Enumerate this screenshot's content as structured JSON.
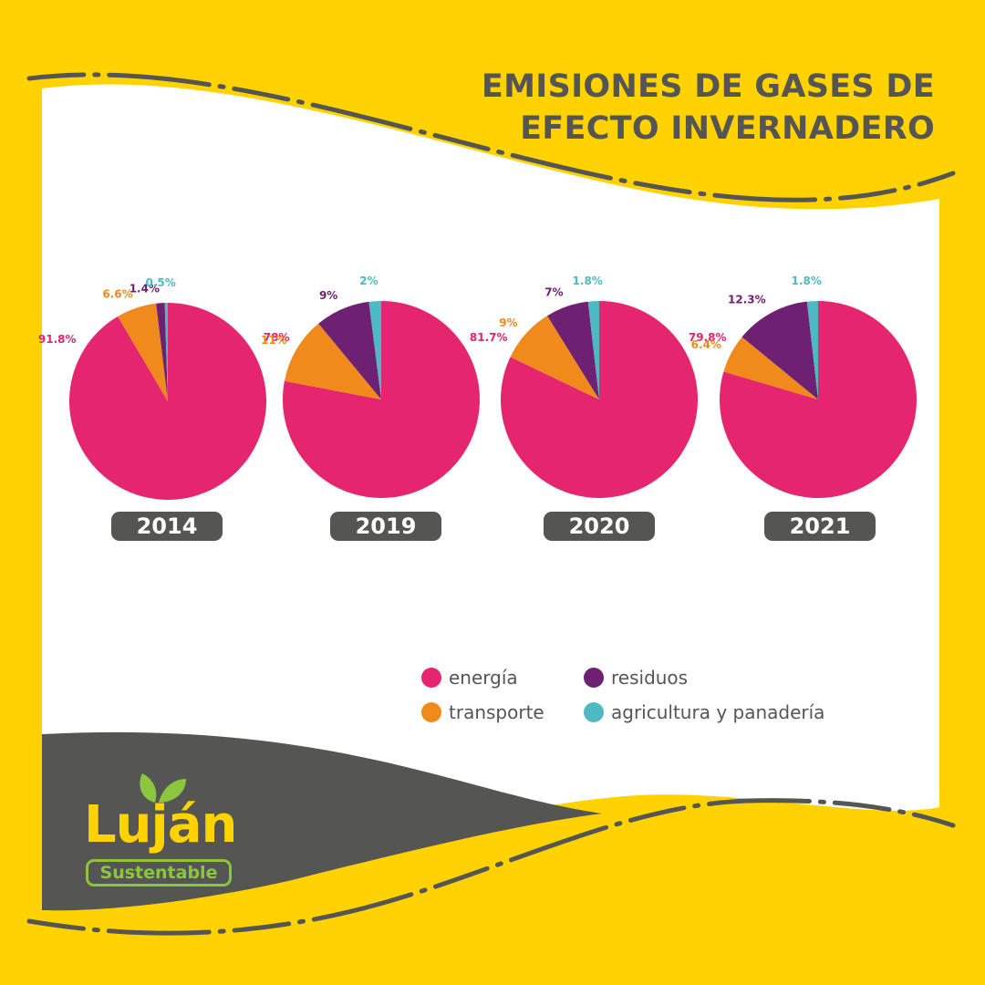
{
  "title_lines": [
    "EMISIONES DE GASES DE",
    "EFECTO INVERNADERO"
  ],
  "colors": {
    "background": "#ffd200",
    "panel": "#ffffff",
    "dark": "#555553",
    "energia": "#e6256f",
    "transporte": "#f08a1c",
    "residuos": "#6e2173",
    "agricultura": "#4dbac3",
    "logo_green": "#8cc63f"
  },
  "chart_data": [
    {
      "type": "pie",
      "title": "2014",
      "slices": [
        {
          "label": "energía",
          "value": 91.8,
          "display": "91.8%",
          "color": "#e6256f"
        },
        {
          "label": "transporte",
          "value": 6.6,
          "display": "6.6%",
          "color": "#f08a1c"
        },
        {
          "label": "residuos",
          "value": 1.4,
          "display": "1.4%",
          "color": "#6e2173"
        },
        {
          "label": "agricultura y panadería",
          "value": 0.5,
          "display": "0.5%",
          "color": "#4dbac3"
        }
      ]
    },
    {
      "type": "pie",
      "title": "2019",
      "slices": [
        {
          "label": "energía",
          "value": 78,
          "display": "78%",
          "color": "#e6256f"
        },
        {
          "label": "transporte",
          "value": 11,
          "display": "11%",
          "color": "#f08a1c"
        },
        {
          "label": "residuos",
          "value": 9,
          "display": "9%",
          "color": "#6e2173"
        },
        {
          "label": "agricultura y panadería",
          "value": 2,
          "display": "2%",
          "color": "#4dbac3"
        }
      ]
    },
    {
      "type": "pie",
      "title": "2020",
      "slices": [
        {
          "label": "energía",
          "value": 81.7,
          "display": "81.7%",
          "color": "#e6256f"
        },
        {
          "label": "transporte",
          "value": 9,
          "display": "9%",
          "color": "#f08a1c"
        },
        {
          "label": "residuos",
          "value": 7,
          "display": "7%",
          "color": "#6e2173"
        },
        {
          "label": "agricultura y panadería",
          "value": 1.8,
          "display": "1.8%",
          "color": "#4dbac3"
        }
      ]
    },
    {
      "type": "pie",
      "title": "2021",
      "slices": [
        {
          "label": "energía",
          "value": 79.8,
          "display": "79.8%",
          "color": "#e6256f"
        },
        {
          "label": "transporte",
          "value": 6.4,
          "display": "6.4%",
          "color": "#f08a1c"
        },
        {
          "label": "residuos",
          "value": 12.3,
          "display": "12.3%",
          "color": "#6e2173"
        },
        {
          "label": "agricultura y panadería",
          "value": 1.8,
          "display": "1.8%",
          "color": "#4dbac3"
        }
      ]
    }
  ],
  "legend": [
    {
      "label": "energía",
      "color": "#e6256f"
    },
    {
      "label": "residuos",
      "color": "#6e2173"
    },
    {
      "label": "transporte",
      "color": "#f08a1c"
    },
    {
      "label": "agricultura y panadería",
      "color": "#4dbac3"
    }
  ],
  "logo": {
    "word": "Luján",
    "tagline": "Sustentable",
    "icon": "leaves-icon"
  }
}
